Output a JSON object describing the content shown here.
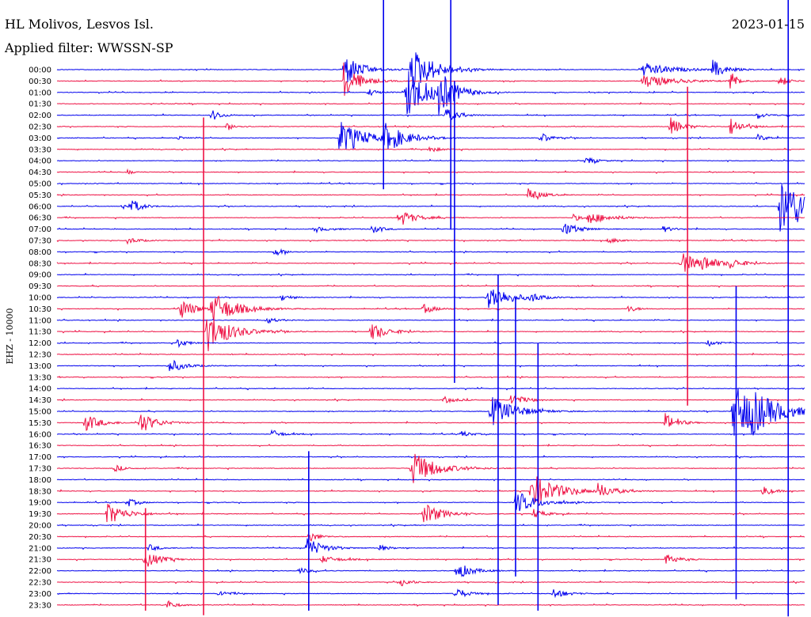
{
  "header": {
    "station": "HL Molivos, Lesvos Isl.",
    "date": "2023-01-15",
    "filter": "Applied filter: WWSSN-SP"
  },
  "chart_data": {
    "type": "line",
    "title": "HL Molivos, Lesvos Isl.",
    "subtitle": "Applied filter: WWSSN-SP",
    "date": "2023-01-15",
    "ylabel": "EHZ - 10000",
    "trace_colors": [
      "#0000ee",
      "#ee1144"
    ],
    "time_labels": [
      "00:00",
      "00:30",
      "01:00",
      "01:30",
      "02:00",
      "02:30",
      "03:00",
      "03:30",
      "04:00",
      "04:30",
      "05:00",
      "05:30",
      "06:00",
      "06:30",
      "07:00",
      "07:30",
      "08:00",
      "08:30",
      "09:00",
      "09:30",
      "10:00",
      "10:30",
      "11:00",
      "11:30",
      "12:00",
      "12:30",
      "13:00",
      "13:30",
      "14:00",
      "14:30",
      "15:00",
      "15:30",
      "16:00",
      "16:30",
      "17:00",
      "17:30",
      "18:00",
      "18:30",
      "19:00",
      "19:30",
      "20:00",
      "20:30",
      "21:00",
      "21:30",
      "22:00",
      "22:30",
      "23:00",
      "23:30"
    ],
    "minutes_per_line": 30,
    "events": [
      [
        0,
        11.5,
        8,
        0.5
      ],
      [
        0,
        23.5,
        3,
        1
      ],
      [
        1,
        11.5,
        8,
        0.5
      ],
      [
        1,
        23.5,
        3,
        1
      ],
      [
        0,
        14.2,
        10,
        0.8
      ],
      [
        0,
        26.3,
        4,
        0.4
      ],
      [
        1,
        27.0,
        5,
        0.2
      ],
      [
        1,
        29.0,
        3,
        0.2
      ],
      [
        2,
        14.0,
        12,
        0.7
      ],
      [
        2,
        15.3,
        9,
        0.5
      ],
      [
        2,
        12.5,
        1.5,
        0.3
      ],
      [
        4,
        6.2,
        2.5,
        0.3
      ],
      [
        4,
        15.6,
        3,
        0.4
      ],
      [
        4,
        28.1,
        1.5,
        0.3
      ],
      [
        5,
        6.8,
        1.5,
        0.3
      ],
      [
        5,
        24.6,
        4,
        0.4
      ],
      [
        5,
        27.0,
        4,
        0.4
      ],
      [
        6,
        11.3,
        8,
        0.8
      ],
      [
        6,
        13.1,
        6,
        0.7
      ],
      [
        6,
        4.8,
        1,
        0.2
      ],
      [
        6,
        19.4,
        2.5,
        0.3
      ],
      [
        6,
        28.1,
        1.5,
        0.3
      ],
      [
        7,
        14.9,
        1.5,
        0.3
      ],
      [
        8,
        21.2,
        2,
        0.3
      ],
      [
        9,
        2.8,
        1,
        0.2
      ],
      [
        12,
        2.6,
        1.5,
        0.3
      ],
      [
        12,
        3.0,
        3,
        0.3
      ],
      [
        12,
        29.0,
        12,
        1.2
      ],
      [
        11,
        18.9,
        3,
        0.4
      ],
      [
        13,
        13.7,
        4,
        0.5
      ],
      [
        13,
        21.3,
        2.5,
        0.8
      ],
      [
        13,
        20.7,
        1.5,
        0.3
      ],
      [
        14,
        20.3,
        3,
        0.5
      ],
      [
        14,
        12.6,
        2,
        0.3
      ],
      [
        14,
        24.3,
        1.5,
        0.3
      ],
      [
        14,
        10.3,
        1,
        0.6
      ],
      [
        15,
        2.8,
        1.5,
        0.4
      ],
      [
        15,
        22.1,
        1.5,
        0.3
      ],
      [
        16,
        8.7,
        2,
        0.3
      ],
      [
        17,
        25.0,
        5,
        0.6
      ],
      [
        17,
        25.9,
        2.5,
        0.5
      ],
      [
        17,
        27.0,
        2,
        0.4
      ],
      [
        20,
        17.3,
        6,
        0.7
      ],
      [
        20,
        19.0,
        2,
        0.3
      ],
      [
        20,
        9.0,
        1.5,
        0.3
      ],
      [
        21,
        4.9,
        5,
        0.5
      ],
      [
        21,
        6.2,
        7,
        0.8
      ],
      [
        21,
        14.7,
        2,
        0.4
      ],
      [
        21,
        22.9,
        1.5,
        0.3
      ],
      [
        22,
        8.4,
        1.5,
        0.3
      ],
      [
        23,
        12.6,
        4,
        0.5
      ],
      [
        23,
        6.0,
        9,
        0.8
      ],
      [
        24,
        4.8,
        2,
        0.3
      ],
      [
        24,
        26.1,
        1.5,
        0.3
      ],
      [
        26,
        4.5,
        3,
        0.5
      ],
      [
        29,
        18.2,
        3,
        0.4
      ],
      [
        29,
        15.5,
        1.5,
        0.4
      ],
      [
        30,
        17.4,
        7,
        0.8
      ],
      [
        30,
        27.1,
        12,
        1.2
      ],
      [
        30,
        27.8,
        5,
        0.6
      ],
      [
        31,
        1.1,
        4,
        0.5
      ],
      [
        31,
        3.3,
        5,
        0.5
      ],
      [
        31,
        24.4,
        4,
        0.4
      ],
      [
        32,
        8.6,
        2,
        0.3
      ],
      [
        32,
        16.2,
        1.5,
        0.3
      ],
      [
        35,
        14.2,
        8,
        0.8
      ],
      [
        35,
        2.3,
        1.5,
        0.3
      ],
      [
        37,
        19.0,
        8,
        0.9
      ],
      [
        37,
        21.7,
        3,
        0.5
      ],
      [
        37,
        28.3,
        2.5,
        0.3
      ],
      [
        38,
        18.4,
        5,
        0.7
      ],
      [
        38,
        2.8,
        2,
        0.3
      ],
      [
        39,
        2.0,
        5,
        0.6
      ],
      [
        39,
        14.7,
        5,
        0.6
      ],
      [
        39,
        19.1,
        2,
        0.4
      ],
      [
        41,
        10.1,
        2.5,
        0.3
      ],
      [
        42,
        10.0,
        5,
        0.5
      ],
      [
        42,
        3.7,
        1.5,
        0.3
      ],
      [
        42,
        12.9,
        1.5,
        0.3
      ],
      [
        43,
        3.5,
        4,
        0.5
      ],
      [
        43,
        24.4,
        2.5,
        0.4
      ],
      [
        43,
        10.6,
        1.5,
        0.6
      ],
      [
        44,
        16.0,
        4,
        0.5
      ],
      [
        44,
        9.7,
        1.5,
        0.3
      ],
      [
        45,
        13.8,
        2,
        0.3
      ],
      [
        46,
        19.9,
        2.5,
        0.4
      ],
      [
        46,
        15.9,
        3,
        0.4
      ],
      [
        46,
        6.5,
        1.5,
        0.3
      ],
      [
        47,
        4.4,
        2,
        0.3
      ]
    ],
    "spikes": [
      {
        "t": 5.88,
        "from": 4.2,
        "to": 47.9,
        "color": "#ee1144"
      },
      {
        "t": 13.1,
        "from": 0.0,
        "to": 10.5,
        "color": "#0000ee"
      },
      {
        "t": 15.8,
        "from": 0.0,
        "to": 14.0,
        "color": "#0000ee"
      },
      {
        "t": 15.95,
        "from": 1.0,
        "to": 27.5,
        "color": "#0000ee"
      },
      {
        "t": 17.7,
        "from": 18.0,
        "to": 47.0,
        "color": "#0000ee"
      },
      {
        "t": 18.4,
        "from": 20.0,
        "to": 44.5,
        "color": "#0000ee"
      },
      {
        "t": 19.3,
        "from": 24.0,
        "to": 47.5,
        "color": "#0000ee"
      },
      {
        "t": 25.3,
        "from": 1.5,
        "to": 29.5,
        "color": "#ee1144"
      },
      {
        "t": 27.25,
        "from": 19.0,
        "to": 46.5,
        "color": "#0000ee"
      },
      {
        "t": 29.34,
        "from": 0.0,
        "to": 48.0,
        "color": "#0000ee"
      },
      {
        "t": 10.1,
        "from": 33.5,
        "to": 47.5,
        "color": "#0000ee"
      },
      {
        "t": 3.55,
        "from": 38.5,
        "to": 47.5,
        "color": "#ee1144"
      }
    ]
  }
}
